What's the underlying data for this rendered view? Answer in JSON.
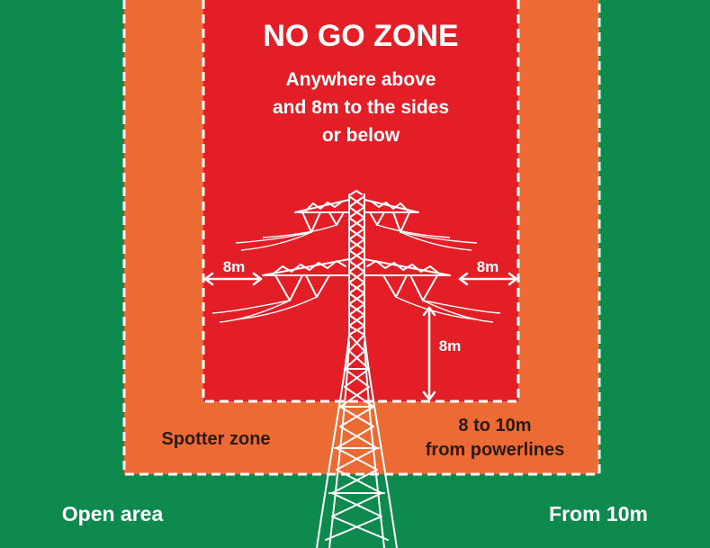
{
  "colors": {
    "open_area": "#0e8a4f",
    "spotter_zone": "#ec6b34",
    "no_go_zone": "#e31e26",
    "lines": "#ffffff",
    "dark_text": "#2a1a12"
  },
  "no_go": {
    "title": "NO GO ZONE",
    "desc_line1": "Anywhere above",
    "desc_line2": "and 8m to the sides",
    "desc_line3": "or below"
  },
  "measurements": {
    "left": "8m",
    "right": "8m",
    "below": "8m"
  },
  "spotter": {
    "label": "Spotter zone",
    "range_line1": "8 to 10m",
    "range_line2": "from powerlines"
  },
  "open_area": {
    "label": "Open area",
    "range": "From 10m"
  }
}
